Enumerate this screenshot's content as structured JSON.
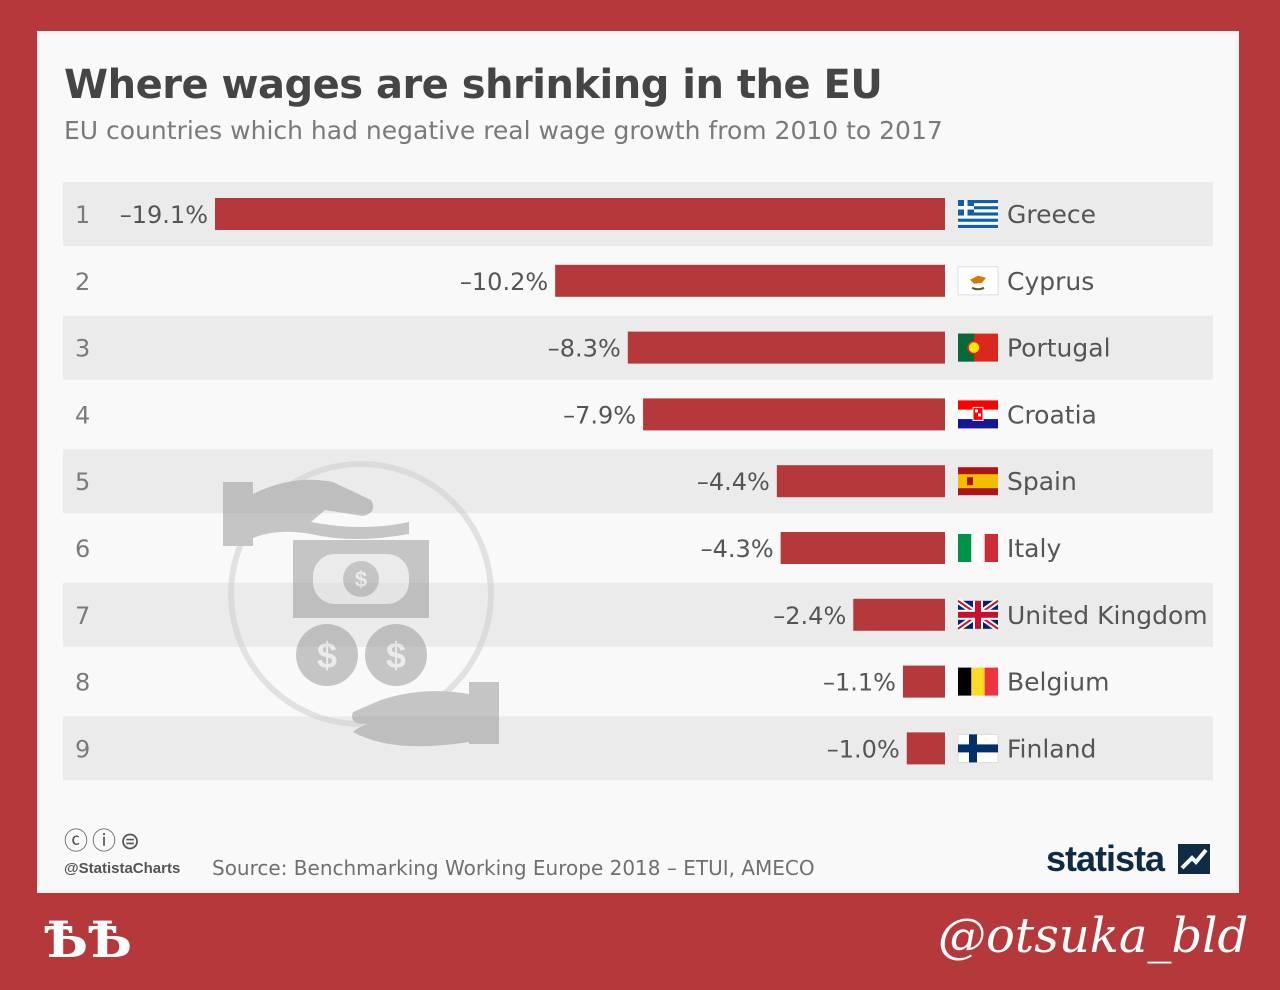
{
  "header": {
    "title": "Where wages are shrinking in the EU",
    "subtitle": "EU countries which had negative real wage growth from 2010 to 2017"
  },
  "footer": {
    "license_icons": "ⓒⓘ⊜",
    "handle": "@StatistaCharts",
    "source": "Source: Benchmarking Working Europe 2018 – ETUI, AMECO",
    "brand": "statista"
  },
  "watermarks": {
    "left": "ѢѢ",
    "right": "@otsuka_bld"
  },
  "colors": {
    "bar": "#b5383b",
    "background": "#b5383b",
    "row_stripe": "#ebebeb"
  },
  "chart_data": {
    "type": "bar",
    "orientation": "horizontal",
    "title": "Where wages are shrinking in the EU",
    "subtitle": "EU countries which had negative real wage growth from 2010 to 2017",
    "categories": [
      "Greece",
      "Cyprus",
      "Portugal",
      "Croatia",
      "Spain",
      "Italy",
      "United Kingdom",
      "Belgium",
      "Finland"
    ],
    "ranks": [
      "1",
      "2",
      "3",
      "4",
      "5",
      "6",
      "7",
      "8",
      "9"
    ],
    "values": [
      -19.1,
      -10.2,
      -8.3,
      -7.9,
      -4.4,
      -4.3,
      -2.4,
      -1.1,
      -1.0
    ],
    "value_labels": [
      "–19.1%",
      "–10.2%",
      "–8.3%",
      "–7.9%",
      "–4.4%",
      "–4.3%",
      "–2.4%",
      "–1.1%",
      "–1.0%"
    ],
    "flag_icons": [
      "greece-flag-icon",
      "cyprus-flag-icon",
      "portugal-flag-icon",
      "croatia-flag-icon",
      "spain-flag-icon",
      "italy-flag-icon",
      "uk-flag-icon",
      "belgium-flag-icon",
      "finland-flag-icon"
    ],
    "xlim": [
      -19.1,
      0
    ],
    "grid": false,
    "legend": "none"
  }
}
